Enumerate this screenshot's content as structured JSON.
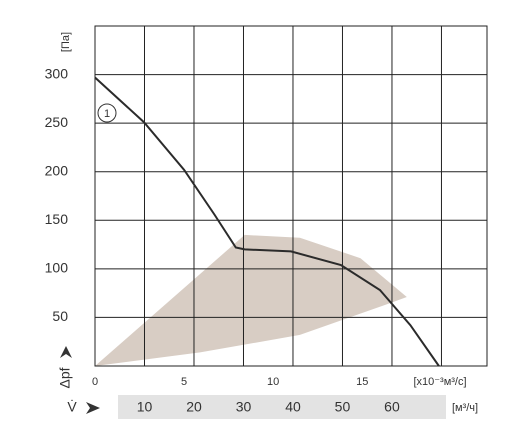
{
  "chart_data": {
    "type": "line",
    "y_label": "[Па]",
    "y_arrow_label": "Δpf",
    "x_label": "[x10⁻³м³/с]",
    "x2_label": "[м³/ч]",
    "x2_symbol": "V̇",
    "annotation": "1",
    "xlim": [
      0,
      22
    ],
    "xticks": [
      0,
      5,
      10,
      15
    ],
    "x2lim": [
      0,
      79.2
    ],
    "x2ticks": [
      10,
      20,
      30,
      40,
      50,
      60
    ],
    "x2grid": [
      10,
      20,
      30,
      40,
      50,
      60,
      70
    ],
    "ylim": [
      0,
      350
    ],
    "yticks": [
      50,
      100,
      150,
      200,
      250,
      300
    ],
    "grid": true,
    "series": [
      {
        "name": "1",
        "color": "#2b2b2b",
        "x": [
          0,
          2.75,
          5,
          6.7,
          7.9,
          8.4,
          11,
          13.8,
          16,
          17.7,
          19.3
        ],
        "values": [
          297,
          251,
          202,
          156,
          122,
          120,
          118,
          104,
          78,
          42,
          0
        ]
      }
    ],
    "area": {
      "color": "#d8cdc4",
      "x": [
        0,
        8.4,
        11.5,
        14.9,
        17.5,
        16.6,
        11.5,
        5.9,
        0
      ],
      "values": [
        0,
        135,
        132,
        111,
        71,
        65,
        32,
        14,
        0
      ]
    }
  }
}
